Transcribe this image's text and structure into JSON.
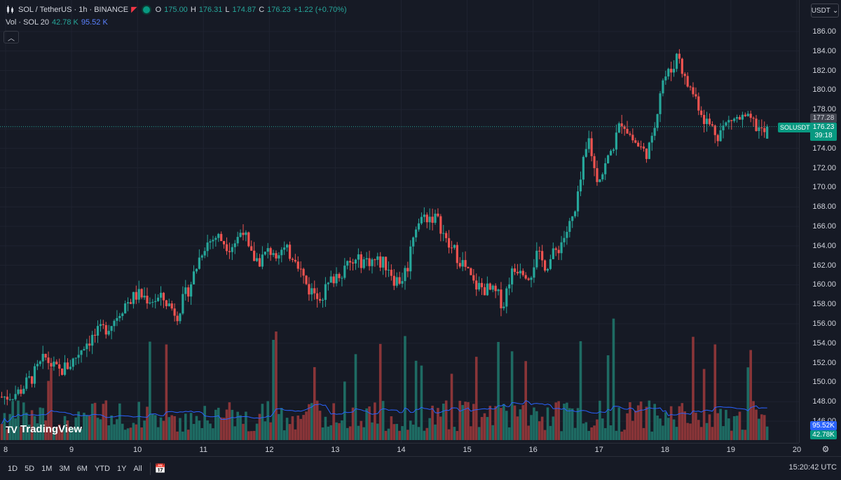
{
  "legend": {
    "symbol": "SOL / TetherUS · 1h · BINANCE",
    "open_label": "O",
    "open": "175.00",
    "high_label": "H",
    "high": "176.31",
    "low_label": "L",
    "low": "174.87",
    "close_label": "C",
    "close": "176.23",
    "change": "+1.22 (+0.70%)",
    "volume_label": "Vol · SOL 20",
    "volume_value": "42.78 K",
    "volume_ma": "95.52 K",
    "collapse_icon": "chevron-up-icon"
  },
  "currency": {
    "label": "USDT"
  },
  "price_scale": {
    "ticks": [
      "186.00",
      "184.00",
      "182.00",
      "180.00",
      "178.00",
      "176.00",
      "174.00",
      "172.00",
      "170.00",
      "168.00",
      "166.00",
      "164.00",
      "162.00",
      "160.00",
      "158.00",
      "156.00",
      "154.00",
      "152.00",
      "150.00",
      "148.00",
      "146.00"
    ]
  },
  "price_labels": {
    "prev_close": "177.28",
    "current": "176.23",
    "countdown": "39:18",
    "symbol_tag": "SOLUSDT"
  },
  "volume_labels": {
    "ma": "95.52K",
    "value": "42.78K"
  },
  "time_scale": {
    "ticks": [
      "8",
      "9",
      "10",
      "11",
      "12",
      "13",
      "14",
      "15",
      "16",
      "17",
      "18",
      "19",
      "20"
    ]
  },
  "watermark": {
    "brand": "TradingView",
    "logo_text": "TV"
  },
  "bottom_bar": {
    "ranges": [
      "1D",
      "5D",
      "1M",
      "3M",
      "6M",
      "YTD",
      "1Y",
      "All"
    ],
    "clock": "15:20:42 UTC"
  },
  "colors": {
    "up": "#26a69a",
    "down": "#ef5350",
    "up_volume": "#1e6b63",
    "down_volume": "#8a3538",
    "ma_line": "#2962ff",
    "background": "#161a25",
    "grid": "#1f2330"
  },
  "chart_data": {
    "type": "candlestick",
    "symbol": "SOLUSDT",
    "interval": "1h",
    "x": [
      "8",
      "9",
      "10",
      "11",
      "12",
      "13",
      "14",
      "15",
      "16",
      "17",
      "18",
      "19",
      "20"
    ],
    "close_path": [
      [
        8.0,
        148.5
      ],
      [
        8.2,
        149.0
      ],
      [
        8.4,
        150.5
      ],
      [
        8.6,
        152.5
      ],
      [
        8.8,
        151.0
      ],
      [
        9.0,
        152.0
      ],
      [
        9.2,
        154.0
      ],
      [
        9.4,
        155.0
      ],
      [
        9.6,
        156.0
      ],
      [
        9.8,
        158.0
      ],
      [
        10.0,
        159.0
      ],
      [
        10.2,
        158.5
      ],
      [
        10.4,
        158.5
      ],
      [
        10.6,
        157.0
      ],
      [
        10.8,
        160.0
      ],
      [
        11.0,
        164.0
      ],
      [
        11.2,
        165.0
      ],
      [
        11.4,
        164.0
      ],
      [
        11.5,
        164.5
      ],
      [
        11.6,
        166.0
      ],
      [
        11.7,
        163.0
      ],
      [
        11.85,
        162.5
      ],
      [
        12.0,
        163.5
      ],
      [
        12.2,
        163.5
      ],
      [
        12.4,
        163.0
      ],
      [
        12.5,
        161.0
      ],
      [
        12.6,
        159.5
      ],
      [
        12.8,
        159.0
      ],
      [
        13.0,
        161.0
      ],
      [
        13.2,
        162.0
      ],
      [
        13.4,
        162.5
      ],
      [
        13.6,
        162.5
      ],
      [
        13.8,
        162.0
      ],
      [
        13.9,
        160.5
      ],
      [
        14.0,
        160.5
      ],
      [
        14.1,
        162.0
      ],
      [
        14.2,
        166.0
      ],
      [
        14.35,
        167.0
      ],
      [
        14.5,
        167.0
      ],
      [
        14.6,
        166.0
      ],
      [
        14.7,
        164.0
      ],
      [
        14.8,
        163.5
      ],
      [
        14.95,
        162.0
      ],
      [
        15.1,
        160.0
      ],
      [
        15.3,
        159.5
      ],
      [
        15.45,
        159.0
      ],
      [
        15.55,
        158.0
      ],
      [
        15.65,
        161.0
      ],
      [
        15.8,
        162.0
      ],
      [
        15.95,
        161.0
      ],
      [
        16.05,
        163.0
      ],
      [
        16.2,
        162.0
      ],
      [
        16.4,
        164.0
      ],
      [
        16.55,
        166.0
      ],
      [
        16.65,
        167.5
      ],
      [
        16.75,
        172.0
      ],
      [
        16.85,
        175.0
      ],
      [
        16.95,
        171.0
      ],
      [
        17.05,
        171.5
      ],
      [
        17.2,
        174.0
      ],
      [
        17.35,
        177.0
      ],
      [
        17.5,
        175.0
      ],
      [
        17.7,
        173.5
      ],
      [
        17.8,
        174.5
      ],
      [
        17.95,
        181.0
      ],
      [
        18.1,
        182.0
      ],
      [
        18.2,
        184.0
      ],
      [
        18.3,
        181.0
      ],
      [
        18.45,
        179.5
      ],
      [
        18.6,
        177.0
      ],
      [
        18.8,
        175.5
      ],
      [
        19.0,
        177.0
      ],
      [
        19.2,
        177.0
      ],
      [
        19.35,
        176.5
      ],
      [
        19.5,
        175.5
      ],
      [
        19.55,
        176.23
      ]
    ],
    "last_candle": {
      "open": 175.0,
      "high": 176.31,
      "low": 174.87,
      "close": 176.23
    },
    "change": 1.22,
    "change_percent": 0.7,
    "previous_close": 177.28,
    "volume_last": "42.78K",
    "volume_ma_20": "95.52K",
    "ylim": [
      145,
      187
    ],
    "grid": true
  }
}
